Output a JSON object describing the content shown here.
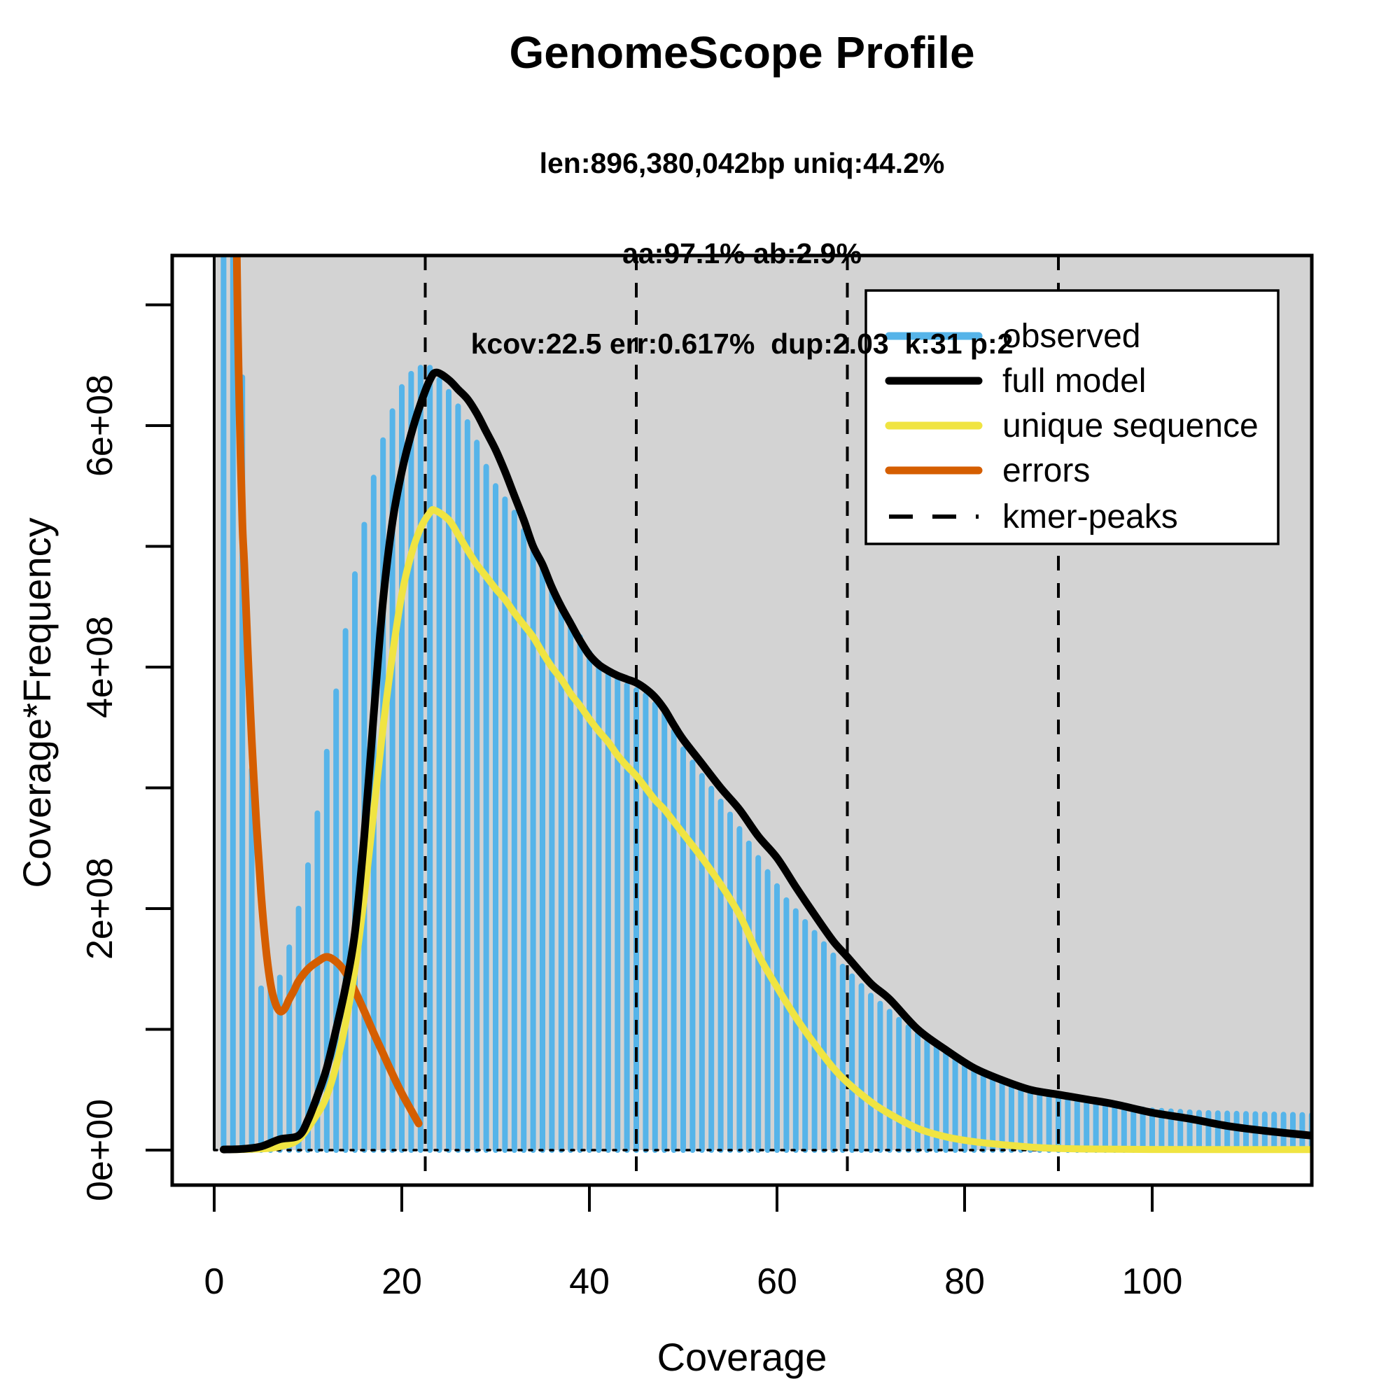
{
  "title": "GenomeScope Profile",
  "subtitle_lines": [
    "len:896,380,042bp uniq:44.2%",
    "aa:97.1% ab:2.9%",
    "kcov:22.5 err:0.617%  dup:2.03  k:31 p:2"
  ],
  "x_axis": {
    "label": "Coverage",
    "tick_labels": [
      "0",
      "20",
      "40",
      "60",
      "80",
      "100"
    ],
    "tick_values": [
      0,
      20,
      40,
      60,
      80,
      100
    ]
  },
  "y_axis": {
    "label": "Coverage*Frequency",
    "tick_labels": [
      "0e+00",
      "2e+08",
      "4e+08",
      "6e+08"
    ],
    "tick_values_e8": [
      0,
      2,
      4,
      6
    ],
    "minor_tick_values_e8": [
      1,
      3,
      5,
      7
    ]
  },
  "legend": {
    "entries": [
      {
        "label": "observed",
        "color": "#56B4E9",
        "style": "solid"
      },
      {
        "label": "full model",
        "color": "#000000",
        "style": "solid"
      },
      {
        "label": "unique sequence",
        "color": "#F0E442",
        "style": "solid"
      },
      {
        "label": "errors",
        "color": "#D55E00",
        "style": "solid"
      },
      {
        "label": "kmer-peaks",
        "color": "#000000",
        "style": "dashed"
      }
    ]
  },
  "colors": {
    "observed": "#56B4E9",
    "full_model": "#000000",
    "unique_sequence": "#F0E442",
    "errors": "#D55E00",
    "panel_shade": "#D3D3D3",
    "background": "#FFFFFF"
  },
  "chart_data": {
    "type": "composite",
    "description": "GenomeScope k-mer coverage histogram (vertical bars) with fitted model curves; values in units of 1e8 Coverage*Frequency",
    "values_unit": "1e8",
    "xlim": [
      -4.48,
      117
    ],
    "ylim_e8": [
      -0.29,
      7.41
    ],
    "grid": false,
    "legend_position": "top-right",
    "kmer_peaks_coverage": [
      22.5,
      45,
      67.5,
      90
    ],
    "zero_line_y": 0,
    "observed_bars": {
      "note": "bars at every integer coverage 1..117; envelope sampled points [coverage, value_e8]; bars at coverage 1-2 exceed plot top (clipped)",
      "envelope": [
        [
          1,
          9.0
        ],
        [
          2,
          9.0
        ],
        [
          3,
          6.4
        ],
        [
          4,
          3.15
        ],
        [
          5,
          1.34
        ],
        [
          6,
          1.37
        ],
        [
          7,
          1.43
        ],
        [
          8,
          1.68
        ],
        [
          9,
          2.0
        ],
        [
          10,
          2.36
        ],
        [
          11,
          2.79
        ],
        [
          12,
          3.3
        ],
        [
          13,
          3.8
        ],
        [
          14,
          4.3
        ],
        [
          15,
          4.77
        ],
        [
          16,
          5.18
        ],
        [
          17,
          5.57
        ],
        [
          18,
          5.88
        ],
        [
          19,
          6.12
        ],
        [
          20,
          6.32
        ],
        [
          21,
          6.43
        ],
        [
          22,
          6.48
        ],
        [
          23,
          6.48
        ],
        [
          24,
          6.38
        ],
        [
          25,
          6.28
        ],
        [
          26,
          6.16
        ],
        [
          27,
          6.03
        ],
        [
          28,
          5.86
        ],
        [
          29,
          5.66
        ],
        [
          30,
          5.5
        ],
        [
          32,
          5.28
        ],
        [
          34,
          4.98
        ],
        [
          36,
          4.66
        ],
        [
          38,
          4.38
        ],
        [
          40,
          4.12
        ],
        [
          42,
          3.95
        ],
        [
          44,
          3.85
        ],
        [
          46,
          3.77
        ],
        [
          48,
          3.62
        ],
        [
          50,
          3.32
        ],
        [
          52,
          3.1
        ],
        [
          55,
          2.78
        ],
        [
          58,
          2.42
        ],
        [
          61,
          2.07
        ],
        [
          64,
          1.8
        ],
        [
          67,
          1.52
        ],
        [
          70,
          1.28
        ],
        [
          73,
          1.08
        ],
        [
          76,
          0.9
        ],
        [
          80,
          0.7
        ],
        [
          84,
          0.57
        ],
        [
          88,
          0.47
        ],
        [
          92,
          0.41
        ],
        [
          96,
          0.36
        ],
        [
          100,
          0.33
        ],
        [
          105,
          0.31
        ],
        [
          110,
          0.3
        ],
        [
          117,
          0.29
        ]
      ]
    },
    "series": [
      {
        "name": "full model",
        "color": "#000000",
        "width": 11,
        "points": [
          [
            1,
            0.005
          ],
          [
            3,
            0.01
          ],
          [
            5,
            0.03
          ],
          [
            7,
            0.09
          ],
          [
            9,
            0.12
          ],
          [
            10,
            0.25
          ],
          [
            11,
            0.45
          ],
          [
            12,
            0.68
          ],
          [
            13,
            1.0
          ],
          [
            14,
            1.35
          ],
          [
            15,
            1.8
          ],
          [
            16,
            2.6
          ],
          [
            17,
            3.6
          ],
          [
            18,
            4.55
          ],
          [
            19,
            5.2
          ],
          [
            20,
            5.62
          ],
          [
            21,
            5.93
          ],
          [
            22,
            6.18
          ],
          [
            23,
            6.38
          ],
          [
            23.7,
            6.44
          ],
          [
            25,
            6.38
          ],
          [
            26,
            6.3
          ],
          [
            27,
            6.22
          ],
          [
            28,
            6.1
          ],
          [
            29,
            5.95
          ],
          [
            30,
            5.8
          ],
          [
            31,
            5.62
          ],
          [
            32,
            5.42
          ],
          [
            33,
            5.22
          ],
          [
            34,
            5.0
          ],
          [
            35,
            4.85
          ],
          [
            36,
            4.66
          ],
          [
            37,
            4.5
          ],
          [
            38,
            4.36
          ],
          [
            39,
            4.22
          ],
          [
            40,
            4.1
          ],
          [
            41,
            4.02
          ],
          [
            42,
            3.97
          ],
          [
            43,
            3.93
          ],
          [
            44,
            3.9
          ],
          [
            45,
            3.87
          ],
          [
            46,
            3.82
          ],
          [
            47,
            3.75
          ],
          [
            48,
            3.65
          ],
          [
            49,
            3.52
          ],
          [
            50,
            3.4
          ],
          [
            52,
            3.2
          ],
          [
            54,
            3.0
          ],
          [
            56,
            2.82
          ],
          [
            58,
            2.6
          ],
          [
            60,
            2.42
          ],
          [
            62,
            2.18
          ],
          [
            64,
            1.95
          ],
          [
            66,
            1.73
          ],
          [
            67.5,
            1.6
          ],
          [
            70,
            1.38
          ],
          [
            72,
            1.25
          ],
          [
            75,
            1.0
          ],
          [
            78,
            0.83
          ],
          [
            81,
            0.68
          ],
          [
            84,
            0.58
          ],
          [
            87,
            0.5
          ],
          [
            90,
            0.46
          ],
          [
            93,
            0.42
          ],
          [
            96,
            0.38
          ],
          [
            100,
            0.31
          ],
          [
            104,
            0.26
          ],
          [
            108,
            0.2
          ],
          [
            112,
            0.16
          ],
          [
            117,
            0.12
          ]
        ]
      },
      {
        "name": "unique sequence",
        "color": "#F0E442",
        "width": 10,
        "points": [
          [
            1,
            0.003
          ],
          [
            5,
            0.01
          ],
          [
            7,
            0.03
          ],
          [
            9,
            0.09
          ],
          [
            11,
            0.3
          ],
          [
            12,
            0.45
          ],
          [
            13,
            0.7
          ],
          [
            14,
            1.05
          ],
          [
            15,
            1.5
          ],
          [
            16,
            2.1
          ],
          [
            17,
            2.8
          ],
          [
            18,
            3.5
          ],
          [
            19,
            4.1
          ],
          [
            20,
            4.6
          ],
          [
            21,
            4.93
          ],
          [
            22,
            5.15
          ],
          [
            23,
            5.28
          ],
          [
            23.5,
            5.3
          ],
          [
            25,
            5.22
          ],
          [
            26,
            5.1
          ],
          [
            27,
            4.97
          ],
          [
            28,
            4.85
          ],
          [
            29,
            4.75
          ],
          [
            30,
            4.65
          ],
          [
            31,
            4.56
          ],
          [
            32,
            4.45
          ],
          [
            33,
            4.35
          ],
          [
            34,
            4.25
          ],
          [
            35,
            4.12
          ],
          [
            36,
            4.0
          ],
          [
            37,
            3.9
          ],
          [
            38,
            3.78
          ],
          [
            39,
            3.68
          ],
          [
            40,
            3.57
          ],
          [
            41,
            3.47
          ],
          [
            42,
            3.38
          ],
          [
            43,
            3.27
          ],
          [
            44,
            3.18
          ],
          [
            45,
            3.1
          ],
          [
            46,
            3.0
          ],
          [
            47,
            2.9
          ],
          [
            48,
            2.82
          ],
          [
            49,
            2.72
          ],
          [
            50,
            2.62
          ],
          [
            52,
            2.42
          ],
          [
            54,
            2.2
          ],
          [
            56,
            1.95
          ],
          [
            58,
            1.62
          ],
          [
            60,
            1.35
          ],
          [
            62,
            1.1
          ],
          [
            64,
            0.88
          ],
          [
            66,
            0.68
          ],
          [
            67.5,
            0.56
          ],
          [
            70,
            0.4
          ],
          [
            72,
            0.3
          ],
          [
            75,
            0.18
          ],
          [
            78,
            0.11
          ],
          [
            81,
            0.07
          ],
          [
            84,
            0.045
          ],
          [
            88,
            0.02
          ],
          [
            92,
            0.01
          ],
          [
            100,
            0.005
          ],
          [
            117,
            0.004
          ]
        ]
      },
      {
        "name": "errors",
        "color": "#D55E00",
        "width": 11,
        "points": [
          [
            2.35,
            7.8
          ],
          [
            2.5,
            6.9
          ],
          [
            2.7,
            6.1
          ],
          [
            3.0,
            5.2
          ],
          [
            3.2,
            4.86
          ],
          [
            3.6,
            4.1
          ],
          [
            4.0,
            3.4
          ],
          [
            4.5,
            2.7
          ],
          [
            5.0,
            2.12
          ],
          [
            5.5,
            1.68
          ],
          [
            6.0,
            1.38
          ],
          [
            6.5,
            1.22
          ],
          [
            7.0,
            1.15
          ],
          [
            7.5,
            1.17
          ],
          [
            8.0,
            1.25
          ],
          [
            8.5,
            1.32
          ],
          [
            9,
            1.4
          ],
          [
            10,
            1.5
          ],
          [
            11,
            1.56
          ],
          [
            12,
            1.6
          ],
          [
            13,
            1.56
          ],
          [
            14,
            1.47
          ],
          [
            15,
            1.32
          ],
          [
            16,
            1.15
          ],
          [
            17,
            0.97
          ],
          [
            18,
            0.8
          ],
          [
            19,
            0.63
          ],
          [
            20,
            0.47
          ],
          [
            21,
            0.33
          ],
          [
            21.8,
            0.22
          ]
        ]
      }
    ]
  }
}
